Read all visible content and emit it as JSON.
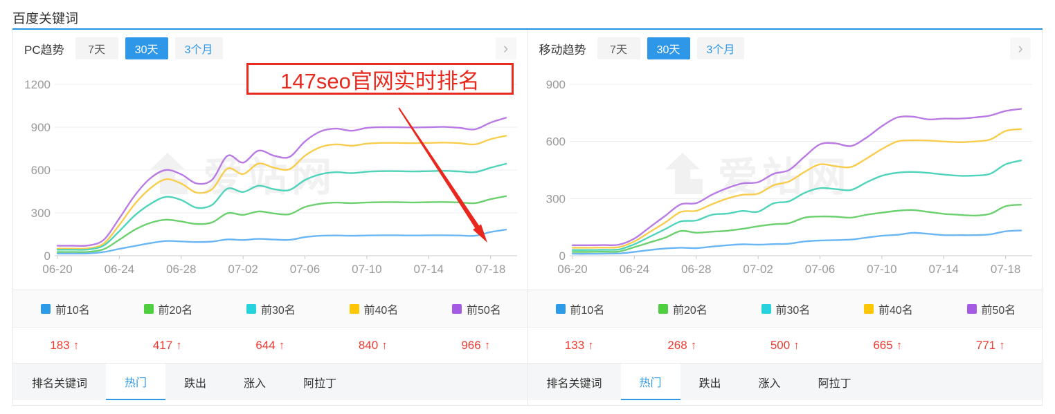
{
  "page": {
    "title": "百度关键词",
    "accent": "#2e97e8",
    "red": "#ee3b32"
  },
  "annotation": {
    "text": "147seo官网实时排名"
  },
  "watermark": {
    "text": "爱站网"
  },
  "panels": [
    {
      "trend_label": "PC趋势",
      "chevron": "›",
      "period_tabs": [
        {
          "label": "7天",
          "active": false
        },
        {
          "label": "30天",
          "active": true
        },
        {
          "label": "3个月",
          "active": false
        }
      ],
      "legend": [
        {
          "label": "前10名",
          "color": "#2b9be8"
        },
        {
          "label": "前20名",
          "color": "#4fcf3f"
        },
        {
          "label": "前30名",
          "color": "#28d2dd"
        },
        {
          "label": "前40名",
          "color": "#fdc602"
        },
        {
          "label": "前50名",
          "color": "#a55ae4"
        }
      ],
      "values": [
        {
          "value": "183",
          "dir": "↑"
        },
        {
          "value": "417",
          "dir": "↑"
        },
        {
          "value": "644",
          "dir": "↑"
        },
        {
          "value": "840",
          "dir": "↑"
        },
        {
          "value": "966",
          "dir": "↑"
        }
      ],
      "bottom_tabs": [
        {
          "label": "排名关键词",
          "active": false
        },
        {
          "label": "热门",
          "active": true
        },
        {
          "label": "跌出",
          "active": false
        },
        {
          "label": "涨入",
          "active": false
        },
        {
          "label": "阿拉丁",
          "active": false
        }
      ]
    },
    {
      "trend_label": "移动趋势",
      "chevron": "›",
      "period_tabs": [
        {
          "label": "7天",
          "active": false
        },
        {
          "label": "30天",
          "active": true
        },
        {
          "label": "3个月",
          "active": false
        }
      ],
      "legend": [
        {
          "label": "前10名",
          "color": "#2b9be8"
        },
        {
          "label": "前20名",
          "color": "#4fcf3f"
        },
        {
          "label": "前30名",
          "color": "#28d2dd"
        },
        {
          "label": "前40名",
          "color": "#fdc602"
        },
        {
          "label": "前50名",
          "color": "#a55ae4"
        }
      ],
      "values": [
        {
          "value": "133",
          "dir": "↑"
        },
        {
          "value": "268",
          "dir": "↑"
        },
        {
          "value": "500",
          "dir": "↑"
        },
        {
          "value": "665",
          "dir": "↑"
        },
        {
          "value": "771",
          "dir": "↑"
        }
      ],
      "bottom_tabs": [
        {
          "label": "排名关键词",
          "active": false
        },
        {
          "label": "热门",
          "active": true
        },
        {
          "label": "跌出",
          "active": false
        },
        {
          "label": "涨入",
          "active": false
        },
        {
          "label": "阿拉丁",
          "active": false
        }
      ]
    }
  ],
  "chart_data": [
    {
      "type": "line",
      "title": "PC趋势 30天",
      "x": [
        "06-20",
        "06-21",
        "06-22",
        "06-23",
        "06-24",
        "06-25",
        "06-26",
        "06-27",
        "06-28",
        "06-29",
        "06-30",
        "07-01",
        "07-02",
        "07-03",
        "07-04",
        "07-05",
        "07-06",
        "07-07",
        "07-08",
        "07-09",
        "07-10",
        "07-11",
        "07-12",
        "07-13",
        "07-14",
        "07-15",
        "07-16",
        "07-17",
        "07-18",
        "07-19"
      ],
      "xtick_labels": [
        "06-20",
        "06-24",
        "06-28",
        "07-02",
        "07-06",
        "07-10",
        "07-14",
        "07-18"
      ],
      "xtick_index": [
        0,
        4,
        8,
        12,
        16,
        20,
        24,
        28
      ],
      "ylim": [
        0,
        1200
      ],
      "yticks": [
        0,
        300,
        600,
        900,
        1200
      ],
      "grid": true,
      "legend_position": "bottom",
      "series": [
        {
          "name": "前10名",
          "color": "#6ab6f5",
          "values": [
            15,
            15,
            16,
            26,
            48,
            68,
            88,
            103,
            100,
            96,
            99,
            114,
            110,
            118,
            113,
            111,
            130,
            140,
            142,
            140,
            142,
            143,
            143,
            142,
            143,
            143,
            142,
            140,
            166,
            183
          ]
        },
        {
          "name": "前20名",
          "color": "#6bd06e",
          "values": [
            26,
            26,
            27,
            46,
            112,
            182,
            230,
            252,
            240,
            222,
            233,
            298,
            286,
            310,
            296,
            291,
            341,
            364,
            372,
            368,
            373,
            375,
            375,
            373,
            375,
            376,
            373,
            368,
            396,
            417
          ]
        },
        {
          "name": "前30名",
          "color": "#4fd4bb",
          "values": [
            42,
            42,
            44,
            72,
            172,
            282,
            362,
            412,
            390,
            336,
            356,
            470,
            446,
            490,
            466,
            460,
            530,
            570,
            585,
            578,
            588,
            592,
            592,
            590,
            592,
            594,
            590,
            585,
            616,
            644
          ]
        },
        {
          "name": "前40名",
          "color": "#f8cd4e",
          "values": [
            50,
            50,
            52,
            86,
            216,
            362,
            472,
            535,
            505,
            442,
            466,
            610,
            572,
            645,
            616,
            606,
            700,
            760,
            780,
            770,
            785,
            790,
            790,
            788,
            790,
            792,
            788,
            780,
            816,
            840
          ]
        },
        {
          "name": "前50名",
          "color": "#ba7ae4",
          "values": [
            70,
            70,
            72,
            112,
            262,
            422,
            542,
            600,
            570,
            506,
            532,
            700,
            652,
            736,
            700,
            692,
            800,
            870,
            890,
            875,
            895,
            900,
            900,
            898,
            900,
            902,
            895,
            885,
            932,
            966
          ]
        }
      ]
    },
    {
      "type": "line",
      "title": "移动趋势 30天",
      "x": [
        "06-20",
        "06-21",
        "06-22",
        "06-23",
        "06-24",
        "06-25",
        "06-26",
        "06-27",
        "06-28",
        "06-29",
        "06-30",
        "07-01",
        "07-02",
        "07-03",
        "07-04",
        "07-05",
        "07-06",
        "07-07",
        "07-08",
        "07-09",
        "07-10",
        "07-11",
        "07-12",
        "07-13",
        "07-14",
        "07-15",
        "07-16",
        "07-17",
        "07-18",
        "07-19"
      ],
      "xtick_labels": [
        "06-20",
        "06-24",
        "06-28",
        "07-02",
        "07-06",
        "07-10",
        "07-14",
        "07-18"
      ],
      "xtick_index": [
        0,
        4,
        8,
        12,
        16,
        20,
        24,
        28
      ],
      "ylim": [
        0,
        900
      ],
      "yticks": [
        0,
        300,
        600,
        900
      ],
      "grid": true,
      "legend_position": "bottom",
      "series": [
        {
          "name": "前10名",
          "color": "#6ab6f5",
          "values": [
            10,
            10,
            11,
            12,
            20,
            30,
            38,
            42,
            40,
            48,
            55,
            60,
            58,
            61,
            63,
            75,
            80,
            82,
            85,
            95,
            105,
            110,
            120,
            115,
            108,
            108,
            108,
            112,
            128,
            133
          ]
        },
        {
          "name": "前20名",
          "color": "#6bd06e",
          "values": [
            20,
            20,
            21,
            22,
            45,
            70,
            95,
            130,
            121,
            126,
            131,
            141,
            155,
            165,
            171,
            200,
            206,
            205,
            200,
            215,
            226,
            236,
            240,
            230,
            220,
            215,
            211,
            220,
            260,
            268
          ]
        },
        {
          "name": "前30名",
          "color": "#4fd4bb",
          "values": [
            30,
            30,
            31,
            33,
            60,
            100,
            140,
            180,
            185,
            215,
            221,
            235,
            231,
            275,
            286,
            330,
            355,
            350,
            345,
            385,
            420,
            436,
            440,
            435,
            426,
            420,
            421,
            430,
            480,
            500
          ]
        },
        {
          "name": "前40名",
          "color": "#f8cd4e",
          "values": [
            42,
            42,
            43,
            45,
            75,
            125,
            175,
            230,
            236,
            270,
            300,
            320,
            326,
            370,
            390,
            440,
            480,
            470,
            466,
            510,
            560,
            600,
            606,
            605,
            600,
            596,
            600,
            610,
            655,
            665
          ]
        },
        {
          "name": "前50名",
          "color": "#ba7ae4",
          "values": [
            55,
            55,
            56,
            58,
            90,
            150,
            210,
            270,
            276,
            320,
            355,
            380,
            386,
            430,
            450,
            520,
            585,
            590,
            576,
            620,
            680,
            726,
            730,
            716,
            720,
            720,
            726,
            736,
            760,
            771
          ]
        }
      ]
    }
  ]
}
